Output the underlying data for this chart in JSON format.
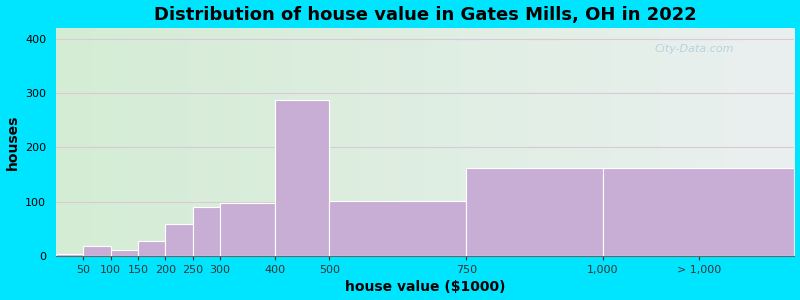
{
  "title": "Distribution of house value in Gates Mills, OH in 2022",
  "xlabel": "house value ($1000)",
  "ylabel": "houses",
  "bar_left_edges": [
    0,
    50,
    100,
    150,
    200,
    250,
    300,
    400,
    500,
    750,
    1000
  ],
  "bar_widths": [
    50,
    50,
    50,
    50,
    50,
    50,
    100,
    100,
    250,
    250,
    350
  ],
  "bar_heights": [
    3,
    18,
    10,
    27,
    58,
    90,
    97,
    288,
    101,
    162,
    162
  ],
  "bar_color": "#c8aed4",
  "bar_edge_color": "#ffffff",
  "xlim_left": 0,
  "xlim_right": 1350,
  "ylim": [
    0,
    420
  ],
  "yticks": [
    0,
    100,
    200,
    300,
    400
  ],
  "xtick_positions": [
    50,
    100,
    150,
    200,
    250,
    300,
    400,
    500,
    750,
    1000,
    1175
  ],
  "xtick_labels": [
    "50",
    "100",
    "150",
    "200",
    "250",
    "300",
    "400",
    "500",
    "750",
    "1,000",
    "> 1,000"
  ],
  "background_outer": "#00e5ff",
  "background_inner": "#e8f3e8",
  "grid_color": "#ddc8d8",
  "title_fontsize": 13,
  "axis_label_fontsize": 10,
  "tick_fontsize": 8,
  "watermark_text": "City-Data.com"
}
